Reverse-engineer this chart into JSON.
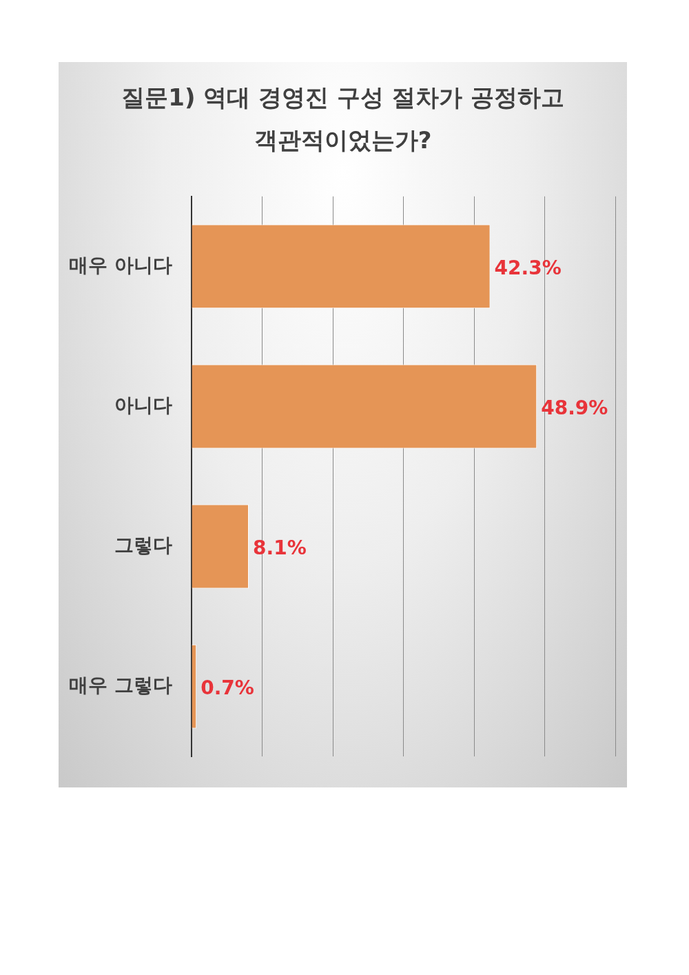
{
  "chart_data": {
    "type": "bar",
    "orientation": "horizontal",
    "title": "질문1) 역대 경영진 구성 절차가 공정하고 객관적이었는가?",
    "categories": [
      "매우 아니다",
      "아니다",
      "그렇다",
      "매우 그렇다"
    ],
    "values": [
      42.3,
      48.9,
      8.1,
      0.7
    ],
    "value_labels": [
      "42.3%",
      "48.9%",
      "8.1%",
      "0.7%"
    ],
    "color": "#e59556",
    "xlim": [
      0,
      60
    ],
    "xticks": [
      {
        "value": 0,
        "label": null
      },
      {
        "value": 10,
        "label": null
      },
      {
        "value": 20,
        "label": null
      },
      {
        "value": 30,
        "label": null
      },
      {
        "value": 40,
        "label": null
      },
      {
        "value": 50,
        "label": null
      },
      {
        "value": 60,
        "label": null
      }
    ],
    "tick_labels": "y",
    "grid": "x",
    "legend": false
  }
}
